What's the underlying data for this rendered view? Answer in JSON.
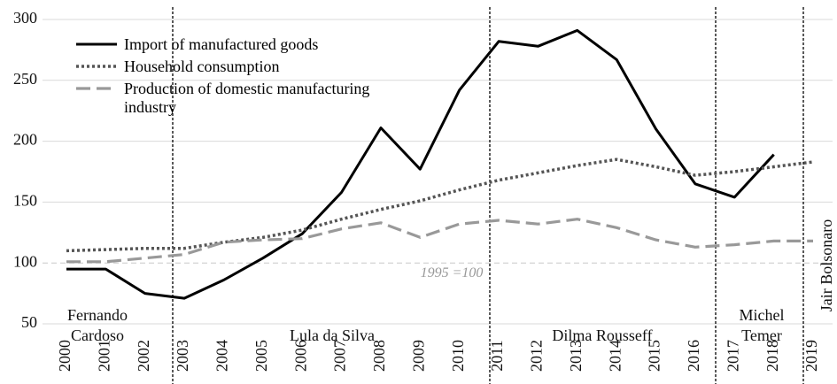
{
  "chart_data": {
    "type": "line",
    "categories": [
      "2000",
      "2001",
      "2002",
      "2003",
      "2004",
      "2005",
      "2006",
      "2007",
      "2008",
      "2009",
      "2010",
      "2011",
      "2012",
      "2013",
      "2014",
      "2015",
      "2016",
      "2017",
      "2018",
      "2019"
    ],
    "series": [
      {
        "name": "Import of manufactured goods",
        "color": "#000000",
        "style": "solid",
        "values": [
          95,
          95,
          75,
          71,
          86,
          104,
          124,
          158,
          211,
          177,
          242,
          282,
          278,
          291,
          267,
          210,
          165,
          154,
          189,
          null
        ]
      },
      {
        "name": "Household consumption",
        "color": "#555555",
        "style": "dotted",
        "values": [
          110,
          111,
          112,
          112,
          117,
          121,
          127,
          136,
          144,
          151,
          160,
          168,
          174,
          180,
          185,
          179,
          172,
          175,
          179,
          183
        ]
      },
      {
        "name": "Production of domestic manufacturing industry",
        "color": "#999999",
        "style": "dashed",
        "values": [
          101,
          101,
          104,
          107,
          117,
          119,
          120,
          128,
          133,
          121,
          132,
          135,
          132,
          136,
          129,
          119,
          113,
          115,
          118,
          118
        ]
      }
    ],
    "ylim": [
      50,
      300
    ],
    "yticks": [
      50,
      100,
      150,
      200,
      250,
      300
    ],
    "grid": true,
    "baseline": 100,
    "baseline_label": "1995 =100",
    "periods": [
      [
        "Fernando",
        "Cardoso"
      ],
      [
        "Lula da Silva"
      ],
      [
        "Dilma Rousseff"
      ],
      [
        "Michel",
        "Temer"
      ],
      [
        "Jair Bolsonaro"
      ]
    ],
    "legend": "upper left"
  }
}
